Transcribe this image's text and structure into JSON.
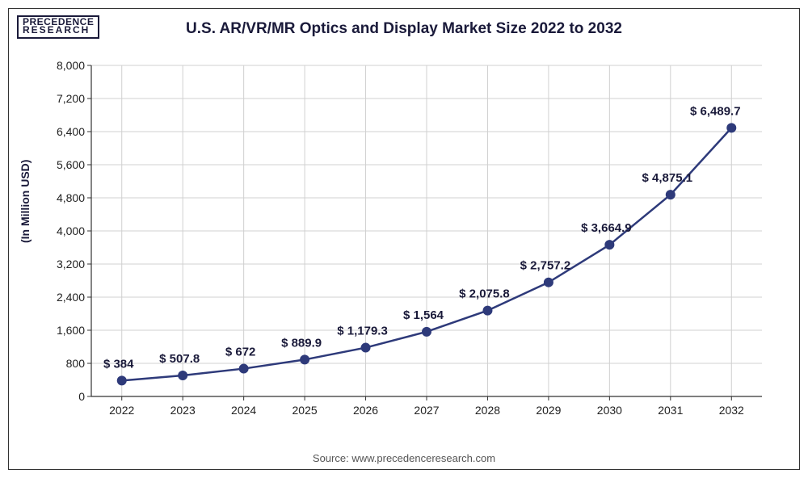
{
  "logo": {
    "line1": "PRECEDENCE",
    "line2": "RESEARCH"
  },
  "title": "U.S. AR/VR/MR Optics and Display Market Size 2022 to 2032",
  "ylabel": "(In Million USD)",
  "source": "Source: www.precedenceresearch.com",
  "chart": {
    "type": "line",
    "categories": [
      "2022",
      "2023",
      "2024",
      "2025",
      "2026",
      "2027",
      "2028",
      "2029",
      "2030",
      "2031",
      "2032"
    ],
    "values": [
      384,
      507.8,
      672,
      889.9,
      1179.3,
      1564,
      2075.8,
      2757.2,
      3664.9,
      4875.1,
      6489.7
    ],
    "labels": [
      "$ 384",
      "$ 507.8",
      "$ 672",
      "$ 889.9",
      "$ 1,179.3",
      "$ 1,564",
      "$ 2,075.8",
      "$ 2,757.2",
      "$ 3,664.9",
      "$ 4,875.1",
      "$ 6,489.7"
    ],
    "ylim": [
      0,
      8000
    ],
    "ytick_step": 800,
    "yticks": [
      "0",
      "800",
      "1,600",
      "2,400",
      "3,200",
      "4,000",
      "4,800",
      "5,600",
      "6,400",
      "7,200",
      "8,000"
    ],
    "line_color": "#2e3a7a",
    "line_width": 2.5,
    "marker_color": "#2e3a7a",
    "marker_size": 6,
    "grid_color": "#d0d0d0",
    "background_color": "#ffffff",
    "axis_color": "#333333",
    "title_fontsize": 19,
    "label_fontsize": 15,
    "tick_fontsize": 14
  }
}
